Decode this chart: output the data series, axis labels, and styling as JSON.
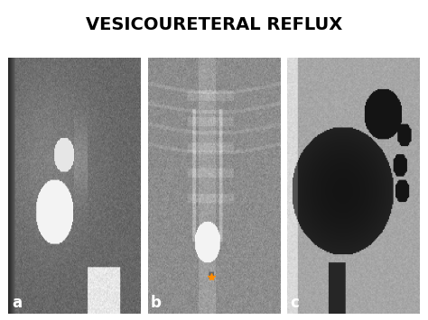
{
  "title": "VESICOURETERAL REFLUX",
  "title_fontsize": 14,
  "title_fontweight": "bold",
  "background_color": "#ffffff",
  "panel_labels": [
    "a",
    "b",
    "c"
  ],
  "label_color": "#ffffff",
  "label_fontsize": 12,
  "label_fontweight": "bold",
  "fig_width": 4.74,
  "fig_height": 3.55,
  "dpi": 100
}
